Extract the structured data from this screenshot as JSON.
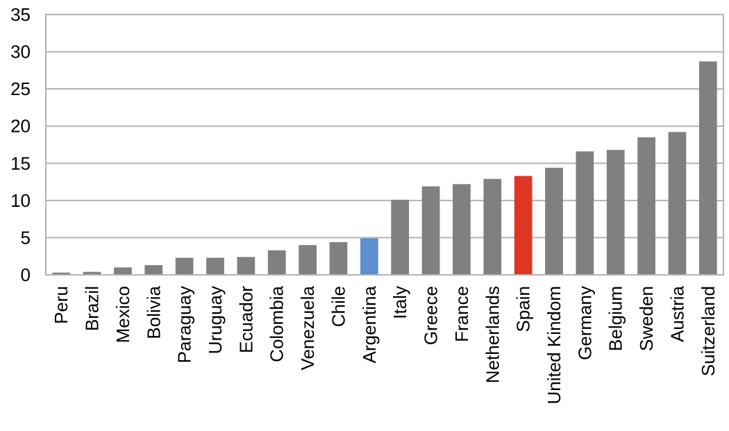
{
  "chart_data": {
    "type": "bar",
    "title": "",
    "xlabel": "",
    "ylabel": "",
    "ylim": [
      0,
      35
    ],
    "yticks": [
      0,
      5,
      10,
      15,
      20,
      25,
      30,
      35
    ],
    "grid": true,
    "legend": "none",
    "categories": [
      "Peru",
      "Brazil",
      "Mexico",
      "Bolivia",
      "Paraguay",
      "Uruguay",
      "Ecuador",
      "Colombia",
      "Venezuela",
      "Chile",
      "Argentina",
      "Italy",
      "Greece",
      "France",
      "Netherlands",
      "Spain",
      "United Kindom",
      "Germany",
      "Belgium",
      "Sweden",
      "Austria",
      "Suitzerland"
    ],
    "values": [
      0.3,
      0.4,
      1.0,
      1.3,
      2.3,
      2.3,
      2.4,
      3.3,
      4.0,
      4.4,
      4.9,
      10.1,
      11.9,
      12.2,
      12.9,
      13.3,
      14.4,
      16.6,
      16.8,
      18.5,
      19.2,
      28.7
    ],
    "colors": {
      "default": "#808080",
      "Argentina": "#5b8fd0",
      "Spain": "#e03524"
    }
  }
}
